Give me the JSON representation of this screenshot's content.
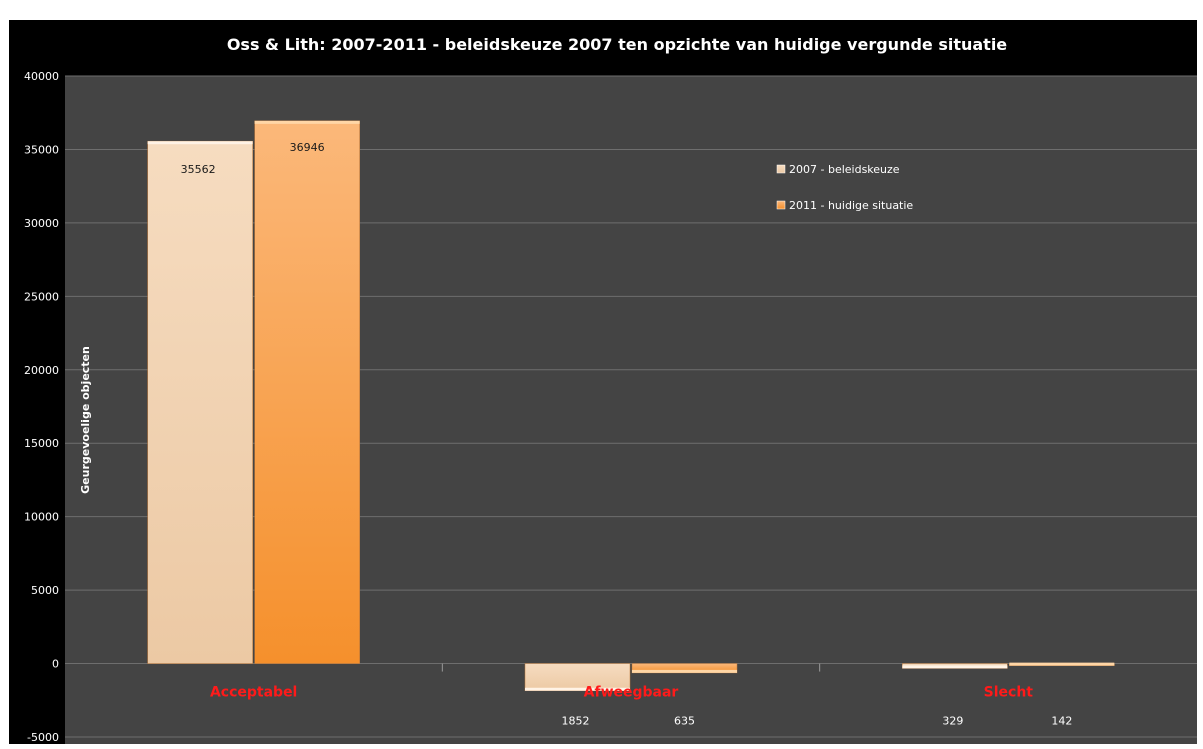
{
  "chart_data": {
    "type": "bar",
    "title": "Oss & Lith: 2007-2011 - beleidskeuze 2007 ten opzichte van huidige vergunde situatie",
    "ylabel": "Geurgevoelige objecten",
    "xlabel": "",
    "categories": [
      "Acceptabel",
      "Afweegbaar",
      "Slecht"
    ],
    "series": [
      {
        "name": "2007 - beleidskeuze",
        "values": [
          35562,
          -1852,
          -329
        ],
        "labels": [
          "35562",
          "1852",
          "329"
        ],
        "color": "#f2d1b0"
      },
      {
        "name": "2011 - huidige situatie",
        "values": [
          36946,
          -635,
          -142
        ],
        "labels": [
          "36946",
          "635",
          "142"
        ],
        "color": "#f79a3e"
      }
    ],
    "ylim": [
      -5000,
      40000
    ],
    "yticks": [
      -5000,
      0,
      5000,
      10000,
      15000,
      20000,
      25000,
      30000,
      35000,
      40000
    ],
    "ytick_labels": [
      "-5000",
      "0",
      "5000",
      "10000",
      "15000",
      "20000",
      "25000",
      "30000",
      "35000",
      "40000"
    ],
    "grid": true,
    "legend_position": "top-right",
    "category_label_color": "#ff1a1a",
    "plot_background": "#444444"
  }
}
